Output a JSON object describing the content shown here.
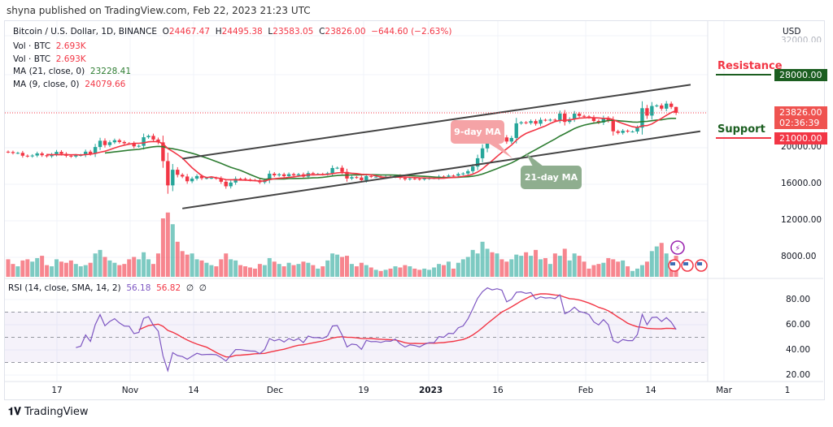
{
  "published": "shyna published on TradingView.com, Feb 22, 2023 21:23 UTC",
  "legend": {
    "symbol": "Bitcoin / U.S. Dollar, 1D, BINANCE",
    "o_label": "O",
    "o": "24467.47",
    "h_label": "H",
    "h": "24495.38",
    "l_label": "L",
    "l": "23583.05",
    "c_label": "C",
    "c": "23826.00",
    "change": "−644.60 (−2.63%)",
    "vol1_label": "Vol · BTC",
    "vol1": "2.693K",
    "vol2_label": "Vol · BTC",
    "vol2": "2.693K",
    "ma21_label": "MA (21, close, 0)",
    "ma21": "23228.41",
    "ma9_label": "MA (9, close, 0)",
    "ma9": "24079.66"
  },
  "rsi_legend": {
    "label": "RSI (14, close, SMA, 14, 2)",
    "rsi": "56.18",
    "sma": "56.82",
    "na1": "∅",
    "na2": "∅"
  },
  "price_axis": {
    "currency": "USD",
    "ticks": [
      "32000.00",
      "28000.00",
      "20000.00",
      "16000.00",
      "12000.00",
      "8000.00"
    ],
    "last_price": "23826.00",
    "countdown": "02:36:39",
    "resistance_price": "28000.00",
    "support_price": "21000.00"
  },
  "rsi_axis": {
    "ticks": [
      "80.00",
      "60.00",
      "40.00",
      "20.00"
    ]
  },
  "time_axis": {
    "ticks": [
      "17",
      "Nov",
      "14",
      "Dec",
      "19",
      "2023",
      "16",
      "Feb",
      "14",
      "Mar",
      "1"
    ]
  },
  "annotations": {
    "resistance": "Resistance",
    "support": "Support",
    "ma9": "9-day MA",
    "ma21": "21-day MA"
  },
  "brand": "TradingView",
  "colors": {
    "up": "#26a69a",
    "down": "#f23645",
    "ma9": "#f23645",
    "ma21": "#2e7d32",
    "rsi": "#7e57c2",
    "rsi_sma": "#f23645",
    "resistance": "#1b5e20",
    "support": "#f23645"
  },
  "chart_data": {
    "type": "candlestick",
    "symbol": "BTCUSD",
    "interval": "1D",
    "start_date": "2022-10-07",
    "end_date": "2023-02-22",
    "ylim": [
      6000,
      33000
    ],
    "closes": [
      19530,
      19420,
      19440,
      19130,
      19060,
      19150,
      19380,
      19180,
      19070,
      19260,
      19550,
      19330,
      19120,
      19040,
      19160,
      19200,
      19570,
      19330,
      20080,
      20770,
      20290,
      20600,
      20820,
      20630,
      20490,
      20480,
      20150,
      20210,
      21150,
      21300,
      20900,
      20590,
      18540,
      15880,
      17590,
      17040,
      16850,
      16330,
      16620,
      16900,
      16660,
      16690,
      16700,
      16640,
      16280,
      15780,
      16190,
      16610,
      16600,
      16520,
      16460,
      16440,
      16220,
      16450,
      17160,
      16980,
      17090,
      16890,
      17110,
      16970,
      17090,
      16840,
      17220,
      17130,
      17130,
      17090,
      17210,
      17780,
      17810,
      17360,
      16630,
      16780,
      16740,
      16440,
      16900,
      16820,
      16830,
      16780,
      16840,
      16830,
      16920,
      16700,
      16550,
      16630,
      16600,
      16540,
      16620,
      16670,
      16670,
      16850,
      16830,
      16950,
      16940,
      17120,
      17180,
      17440,
      17940,
      18850,
      19930,
      20950,
      20870,
      21180,
      21130,
      20680,
      21070,
      22670,
      22780,
      22710,
      22920,
      22630,
      23060,
      23010,
      23070,
      23030,
      23740,
      22830,
      23130,
      23730,
      23490,
      23430,
      23330,
      22930,
      22760,
      23250,
      22960,
      21800,
      21630,
      21860,
      21780,
      21780,
      22200,
      24330,
      23520,
      24570,
      24630,
      24280,
      24830,
      24470,
      23826
    ],
    "volume_relative": [
      30,
      22,
      18,
      28,
      30,
      26,
      32,
      36,
      20,
      18,
      30,
      26,
      24,
      28,
      22,
      18,
      20,
      24,
      40,
      46,
      34,
      28,
      24,
      20,
      22,
      30,
      34,
      30,
      42,
      30,
      22,
      40,
      100,
      110,
      90,
      60,
      44,
      38,
      40,
      30,
      28,
      24,
      20,
      18,
      30,
      40,
      30,
      28,
      20,
      18,
      16,
      14,
      22,
      20,
      32,
      26,
      22,
      18,
      24,
      20,
      22,
      26,
      24,
      20,
      14,
      18,
      28,
      40,
      38,
      34,
      36,
      22,
      18,
      24,
      20,
      16,
      12,
      10,
      12,
      14,
      18,
      16,
      20,
      18,
      14,
      12,
      14,
      12,
      16,
      22,
      20,
      26,
      14,
      24,
      30,
      34,
      46,
      40,
      60,
      48,
      42,
      40,
      30,
      26,
      30,
      38,
      36,
      42,
      36,
      46,
      30,
      32,
      22,
      40,
      36,
      48,
      28,
      40,
      36,
      26,
      14,
      20,
      22,
      24,
      32,
      30,
      26,
      28,
      18,
      10,
      14,
      20,
      26,
      44,
      52,
      58,
      40,
      28,
      36,
      28,
      20
    ],
    "trendlines": {
      "upper": [
        [
          "2022-11-12",
          18800
        ],
        [
          "2023-02-25",
          26900
        ]
      ],
      "lower": [
        [
          "2022-11-12",
          13350
        ],
        [
          "2023-02-27",
          21800
        ]
      ]
    },
    "levels": {
      "resistance": 28000,
      "support": 21000
    },
    "rsi": {
      "period": 14,
      "sma": 14,
      "upper": 70,
      "middle": 50,
      "lower": 30,
      "ylim": [
        20,
        90
      ]
    }
  }
}
